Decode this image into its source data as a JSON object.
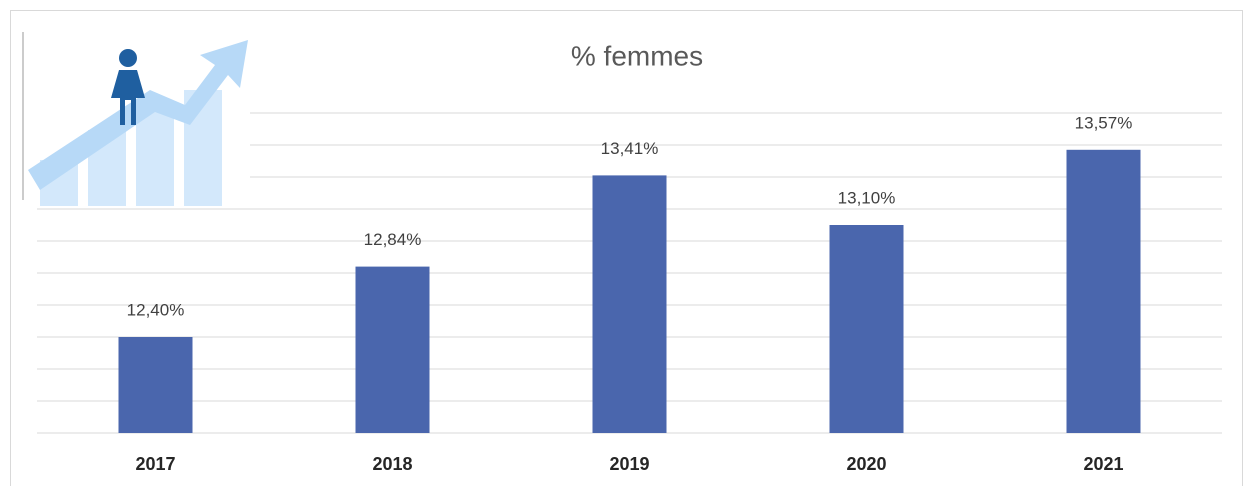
{
  "chart_data": {
    "type": "bar",
    "title": "% femmes",
    "categories": [
      "2017",
      "2018",
      "2019",
      "2020",
      "2021"
    ],
    "values": [
      12.4,
      12.84,
      13.41,
      13.1,
      13.57
    ],
    "value_labels": [
      "12,40%",
      "12,84%",
      "13,41%",
      "13,10%",
      "13,57%"
    ],
    "color": "#4a66ad",
    "ylim": [
      11.8,
      13.8
    ],
    "yticks": [
      11.8,
      12,
      12.2,
      12.4,
      12.6,
      12.8,
      13,
      13.2,
      13.4,
      13.6,
      13.8
    ],
    "show_ytick_labels": false,
    "grid": true
  }
}
